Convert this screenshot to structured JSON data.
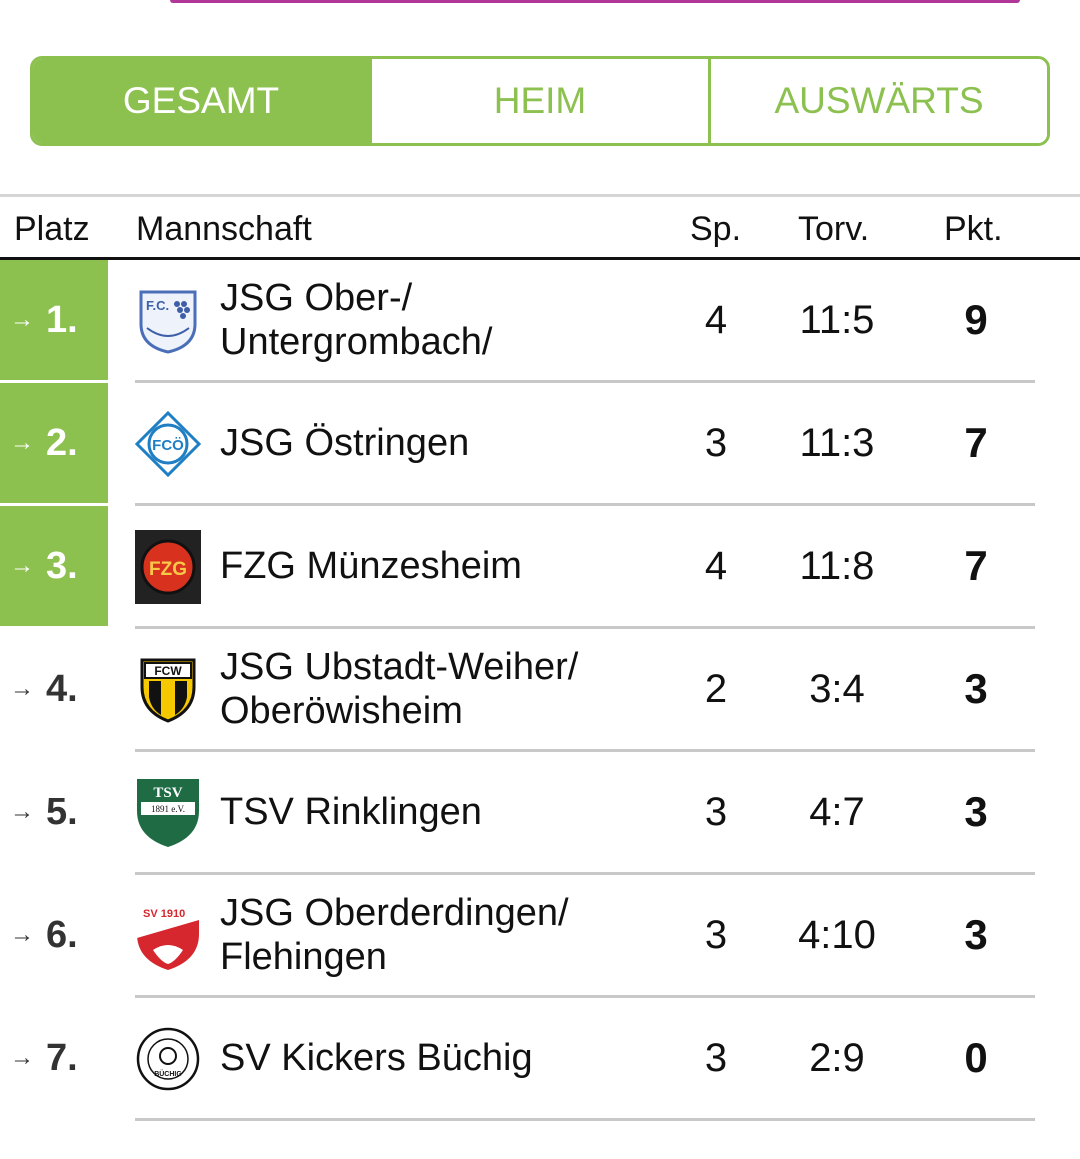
{
  "tabs": [
    {
      "label": "GESAMT",
      "active": true
    },
    {
      "label": "HEIM",
      "active": false
    },
    {
      "label": "AUSWÄRTS",
      "active": false
    }
  ],
  "columns": {
    "platz": "Platz",
    "mannschaft": "Mannschaft",
    "sp": "Sp.",
    "torv": "Torv.",
    "pkt": "Pkt."
  },
  "colors": {
    "accent": "#8cc04f",
    "top_strip": "#b0369a"
  },
  "rows": [
    {
      "rank": "1.",
      "team_line1": "JSG Ober-/",
      "team_line2": "Untergrombach/",
      "sp": "4",
      "torv": "11:5",
      "pkt": "9",
      "logo_icon": "fc-obergrombach-logo-icon",
      "logo_text": "F.C.",
      "promo": true
    },
    {
      "rank": "2.",
      "team_line1": "JSG Östringen",
      "team_line2": "",
      "sp": "3",
      "torv": "11:3",
      "pkt": "7",
      "logo_icon": "fc-oestringen-logo-icon",
      "logo_text": "FCÖ",
      "promo": true
    },
    {
      "rank": "3.",
      "team_line1": "FZG Münzesheim",
      "team_line2": "",
      "sp": "4",
      "torv": "11:8",
      "pkt": "7",
      "logo_icon": "fv-muenzesheim-logo-icon",
      "logo_text": "FZG",
      "promo": true
    },
    {
      "rank": "4.",
      "team_line1": "JSG Ubstadt-Weiher/",
      "team_line2": "Oberöwisheim",
      "sp": "2",
      "torv": "3:4",
      "pkt": "3",
      "logo_icon": "fcw-shield-logo-icon",
      "logo_text": "FCW",
      "promo": false
    },
    {
      "rank": "5.",
      "team_line1": "TSV Rinklingen",
      "team_line2": "",
      "sp": "3",
      "torv": "4:7",
      "pkt": "3",
      "logo_icon": "tsv-rinklingen-shield-logo-icon",
      "logo_text": "TSV",
      "logo_text2": "1891 e.V.",
      "promo": false
    },
    {
      "rank": "6.",
      "team_line1": "JSG Oberderdingen/",
      "team_line2": "Flehingen",
      "sp": "3",
      "torv": "4:10",
      "pkt": "3",
      "logo_icon": "sv-oberderdingen-shield-logo-icon",
      "logo_text": "SV 1910",
      "promo": false
    },
    {
      "rank": "7.",
      "team_line1": "SV Kickers Büchig",
      "team_line2": "",
      "sp": "3",
      "torv": "2:9",
      "pkt": "0",
      "logo_icon": "sv-kickers-buechig-seal-logo-icon",
      "logo_text": "BÜCHIG",
      "promo": false
    }
  ]
}
